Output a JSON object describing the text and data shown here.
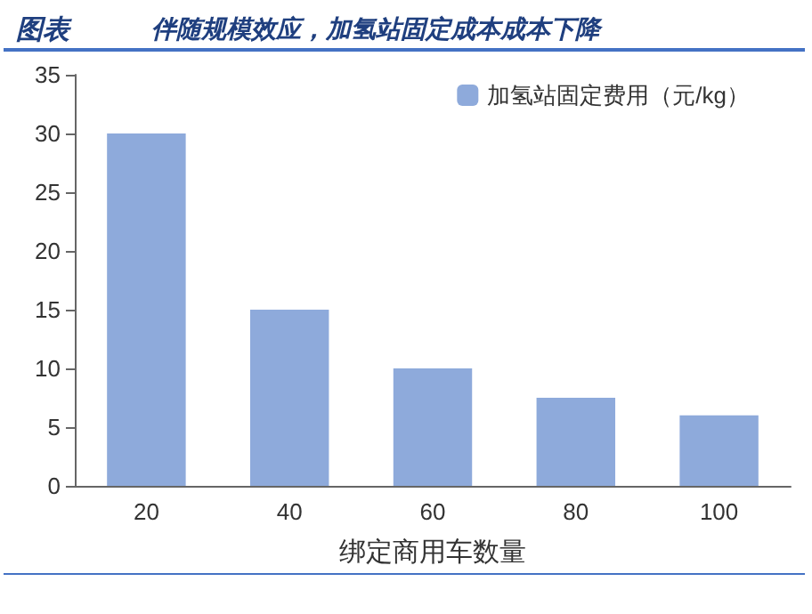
{
  "chart_data": {
    "type": "bar",
    "title": "图表",
    "subtitle": "伴随规模效应，加氢站固定成本成本下降",
    "xlabel": "绑定商用车数量",
    "categories": [
      "20",
      "40",
      "60",
      "80",
      "100"
    ],
    "series": [
      {
        "name": "加氢站固定费用（元/kg）",
        "color": "#8eaadb",
        "values": [
          30,
          15,
          10,
          7.5,
          6
        ]
      }
    ],
    "ylim": [
      0,
      35
    ],
    "yticks": [
      0,
      5,
      10,
      15,
      20,
      25,
      30,
      35
    ],
    "grid": false,
    "legend": "top right"
  }
}
